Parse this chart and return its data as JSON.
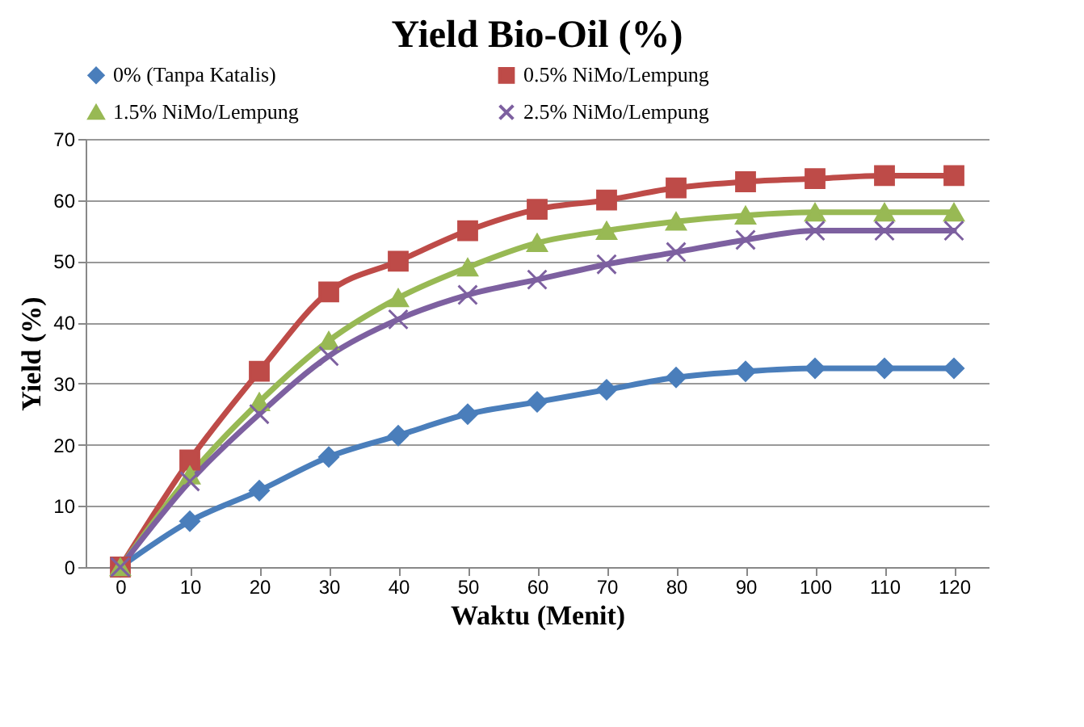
{
  "chart_data": {
    "type": "line",
    "title": "Yield Bio-Oil (%)",
    "xlabel": "Waktu (Menit)",
    "ylabel": "Yield (%)",
    "categories": [
      "0",
      "10",
      "20",
      "30",
      "40",
      "50",
      "60",
      "70",
      "80",
      "90",
      "100",
      "110",
      "120"
    ],
    "series": [
      {
        "name": "0% (Tanpa Katalis)",
        "color": "#4a7ebb",
        "marker": "diamond",
        "values": [
          0,
          7.5,
          12.5,
          18,
          21.5,
          25,
          27,
          29,
          31,
          32,
          32.5,
          32.5,
          32.5
        ]
      },
      {
        "name": "0.5% NiMo/Lempung",
        "color": "#be4b48",
        "marker": "square",
        "values": [
          0,
          17.5,
          32,
          45,
          50,
          55,
          58.5,
          60,
          62,
          63,
          63.5,
          64,
          64
        ]
      },
      {
        "name": "1.5% NiMo/Lempung",
        "color": "#98b954",
        "marker": "triangle",
        "values": [
          0,
          15,
          27,
          37,
          44,
          49,
          53,
          55,
          56.5,
          57.5,
          58,
          58,
          58
        ]
      },
      {
        "name": "2.5% NiMo/Lempung",
        "color": "#7d60a0",
        "marker": "cross",
        "values": [
          0,
          14,
          25,
          34.5,
          40.5,
          44.5,
          47,
          49.5,
          51.5,
          53.5,
          55,
          55,
          55
        ]
      }
    ],
    "ylim": [
      0,
      70
    ],
    "yticks": [
      0,
      10,
      20,
      30,
      40,
      50,
      60,
      70
    ],
    "grid": "y",
    "legend": "top"
  }
}
